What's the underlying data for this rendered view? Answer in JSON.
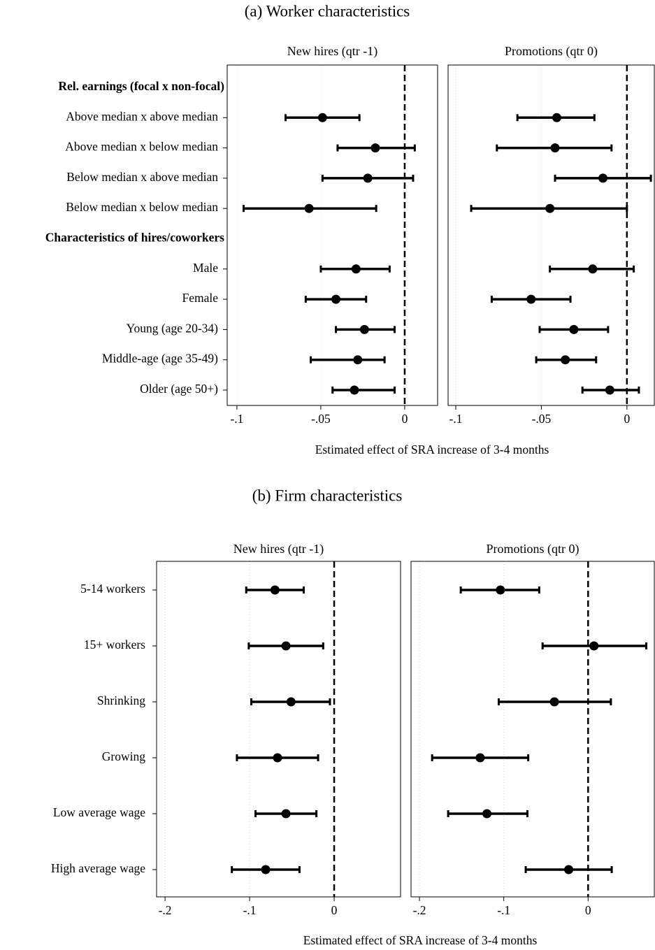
{
  "chart_data": [
    {
      "type": "coefplot",
      "title": "(a) Worker characteristics",
      "xlabel": "Estimated effect of SRA increase of 3-4 months",
      "categories": [
        "Rel. earnings (focal x non-focal)",
        "Above median x above median",
        "Above median x below median",
        "Below median x above median",
        "Below median x below median",
        "Characteristics of hires/coworkers",
        "Male",
        "Female",
        "Young (age 20-34)",
        "Middle-age (age 35-49)",
        "Older (age 50+)"
      ],
      "reference_line": 0,
      "grid": true,
      "color": "#000000",
      "panels": [
        {
          "title": "New hires (qtr -1)",
          "xlim": [
            -0.1058,
            0.0196
          ],
          "xticks": [
            {
              "value": -0.1,
              "label": "-.1"
            },
            {
              "value": -0.05,
              "label": "-.05"
            },
            0
          ],
          "values": [
            null,
            -0.049,
            -0.0175,
            -0.022,
            -0.057,
            null,
            -0.029,
            -0.041,
            -0.024,
            -0.028,
            -0.03
          ],
          "lower": [
            null,
            -0.071,
            -0.04,
            -0.049,
            -0.096,
            null,
            -0.05,
            -0.059,
            -0.041,
            -0.056,
            -0.043
          ],
          "upper": [
            null,
            -0.027,
            0.006,
            0.005,
            -0.017,
            null,
            -0.009,
            -0.023,
            -0.006,
            -0.012,
            -0.006
          ]
        },
        {
          "title": "Promotions (qtr 0)",
          "xlim": [
            -0.1045,
            0.016
          ],
          "xticks": [
            {
              "value": -0.1,
              "label": "-.1"
            },
            {
              "value": -0.05,
              "label": "-.05"
            },
            0
          ],
          "values": [
            null,
            -0.041,
            -0.042,
            -0.014,
            -0.045,
            null,
            -0.02,
            -0.056,
            -0.031,
            -0.036,
            -0.01
          ],
          "lower": [
            null,
            -0.064,
            -0.076,
            -0.042,
            -0.091,
            null,
            -0.045,
            -0.079,
            -0.051,
            -0.053,
            -0.026
          ],
          "upper": [
            null,
            -0.019,
            -0.009,
            0.014,
            0.0,
            null,
            0.004,
            -0.033,
            -0.011,
            -0.018,
            0.007
          ]
        }
      ]
    },
    {
      "type": "coefplot",
      "title": "(b) Firm characteristics",
      "xlabel": "Estimated effect of SRA increase of 3-4 months",
      "categories": [
        "5-14 workers",
        "15+ workers",
        "Shrinking",
        "Growing",
        "Low average wage",
        "High average wage"
      ],
      "reference_line": 0,
      "grid": true,
      "color": "#000000",
      "panels": [
        {
          "title": "New hires (qtr -1)",
          "xlim": [
            -0.21,
            0.0785
          ],
          "xticks": [
            {
              "value": -0.2,
              "label": "-.2"
            },
            {
              "value": -0.1,
              "label": "-.1"
            },
            0
          ],
          "values": [
            -0.07,
            -0.057,
            -0.051,
            -0.067,
            -0.057,
            -0.081
          ],
          "lower": [
            -0.104,
            -0.101,
            -0.098,
            -0.115,
            -0.093,
            -0.121
          ],
          "upper": [
            -0.036,
            -0.013,
            -0.005,
            -0.019,
            -0.021,
            -0.041
          ]
        },
        {
          "title": "Promotions (qtr 0)",
          "xlim": [
            -0.21,
            0.0785
          ],
          "xticks": [
            {
              "value": -0.2,
              "label": "-.2"
            },
            {
              "value": -0.1,
              "label": "-.1"
            },
            0
          ],
          "values": [
            -0.104,
            0.007,
            -0.04,
            -0.128,
            -0.12,
            -0.023
          ],
          "lower": [
            -0.151,
            -0.054,
            -0.106,
            -0.185,
            -0.166,
            -0.074
          ],
          "upper": [
            -0.058,
            0.069,
            0.027,
            -0.071,
            -0.072,
            0.028
          ]
        }
      ]
    }
  ]
}
